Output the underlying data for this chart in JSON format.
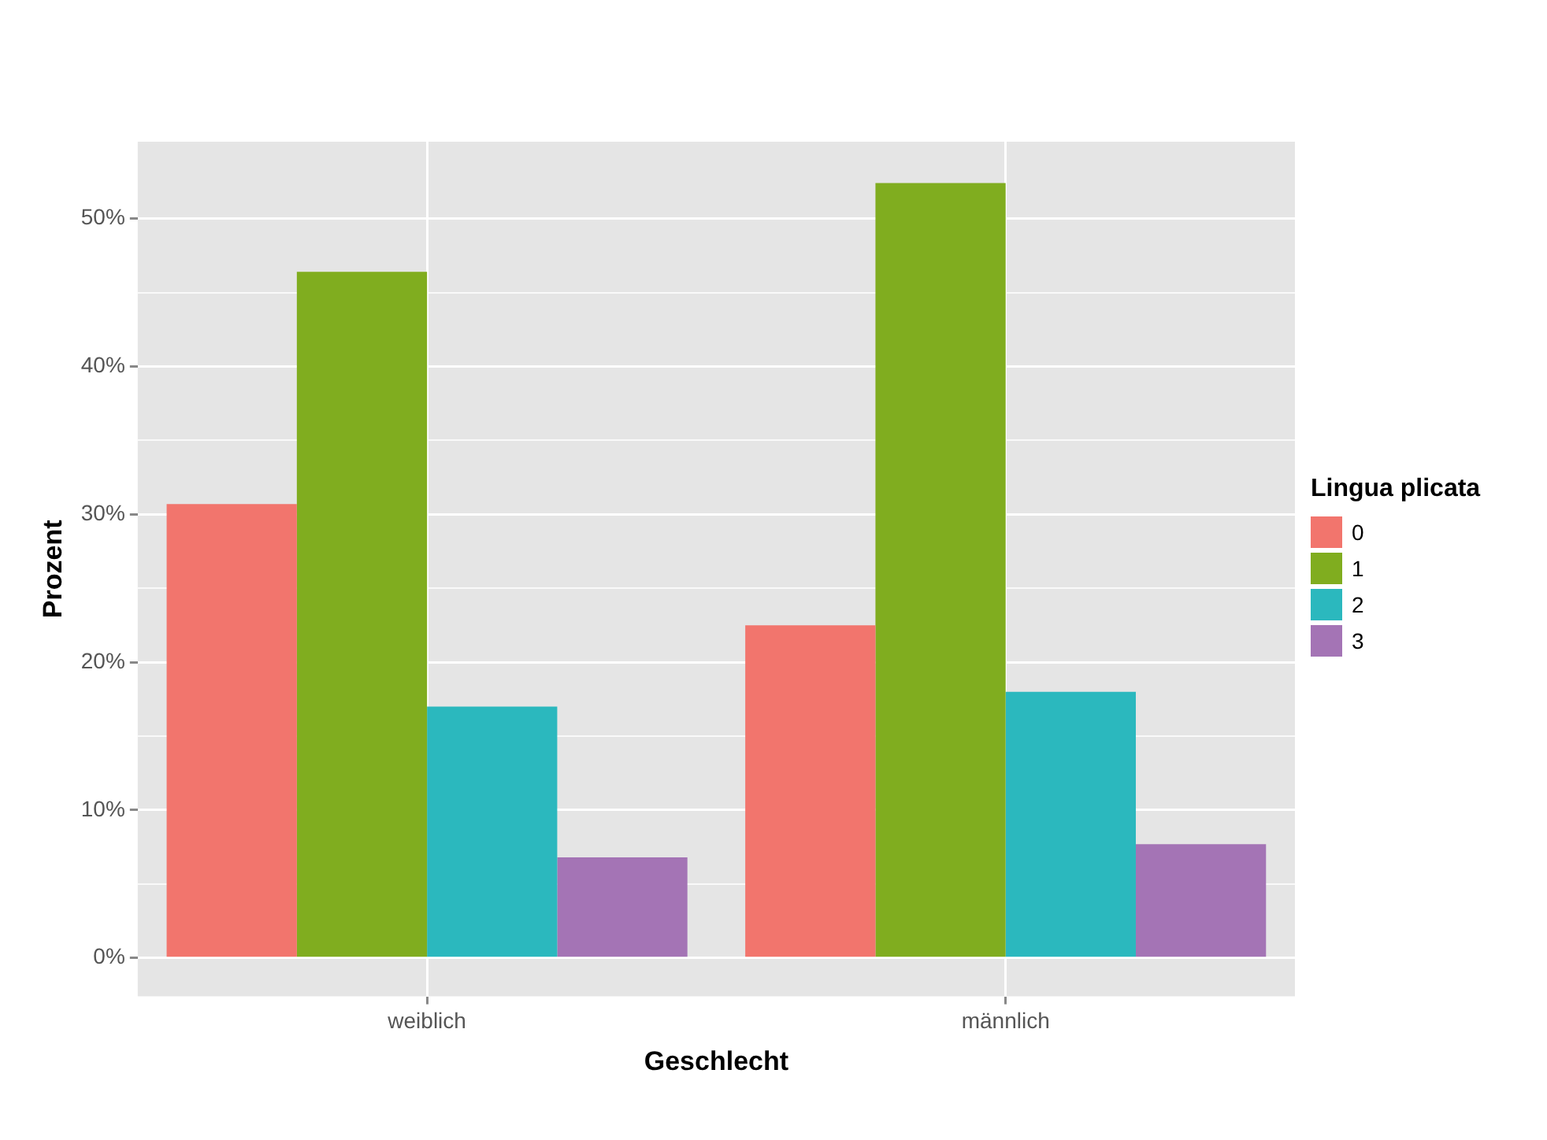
{
  "chart_data": {
    "type": "bar",
    "xlabel": "Geschlecht",
    "ylabel": "Prozent",
    "legend_title": "Lingua plicata",
    "categories": [
      "weiblich",
      "männlich"
    ],
    "series": [
      {
        "name": "0",
        "color": "#f2756d",
        "values": [
          30.7,
          22.5
        ]
      },
      {
        "name": "1",
        "color": "#80ad1f",
        "values": [
          46.4,
          52.4
        ]
      },
      {
        "name": "2",
        "color": "#2bb8be",
        "values": [
          17.0,
          18.0
        ]
      },
      {
        "name": "3",
        "color": "#a474b5",
        "values": [
          6.8,
          7.7
        ]
      }
    ],
    "ylim": [
      -2.6,
      55.2
    ],
    "yticks": [
      {
        "value": 0,
        "label": "0%"
      },
      {
        "value": 5,
        "label": null
      },
      {
        "value": 10,
        "label": "10%"
      },
      {
        "value": 15,
        "label": null
      },
      {
        "value": 20,
        "label": "20%"
      },
      {
        "value": 25,
        "label": null
      },
      {
        "value": 30,
        "label": "30%"
      },
      {
        "value": 35,
        "label": null
      },
      {
        "value": 40,
        "label": "40%"
      },
      {
        "value": 45,
        "label": null
      },
      {
        "value": 50,
        "label": "50%"
      }
    ],
    "grid": true,
    "legend": "right"
  }
}
